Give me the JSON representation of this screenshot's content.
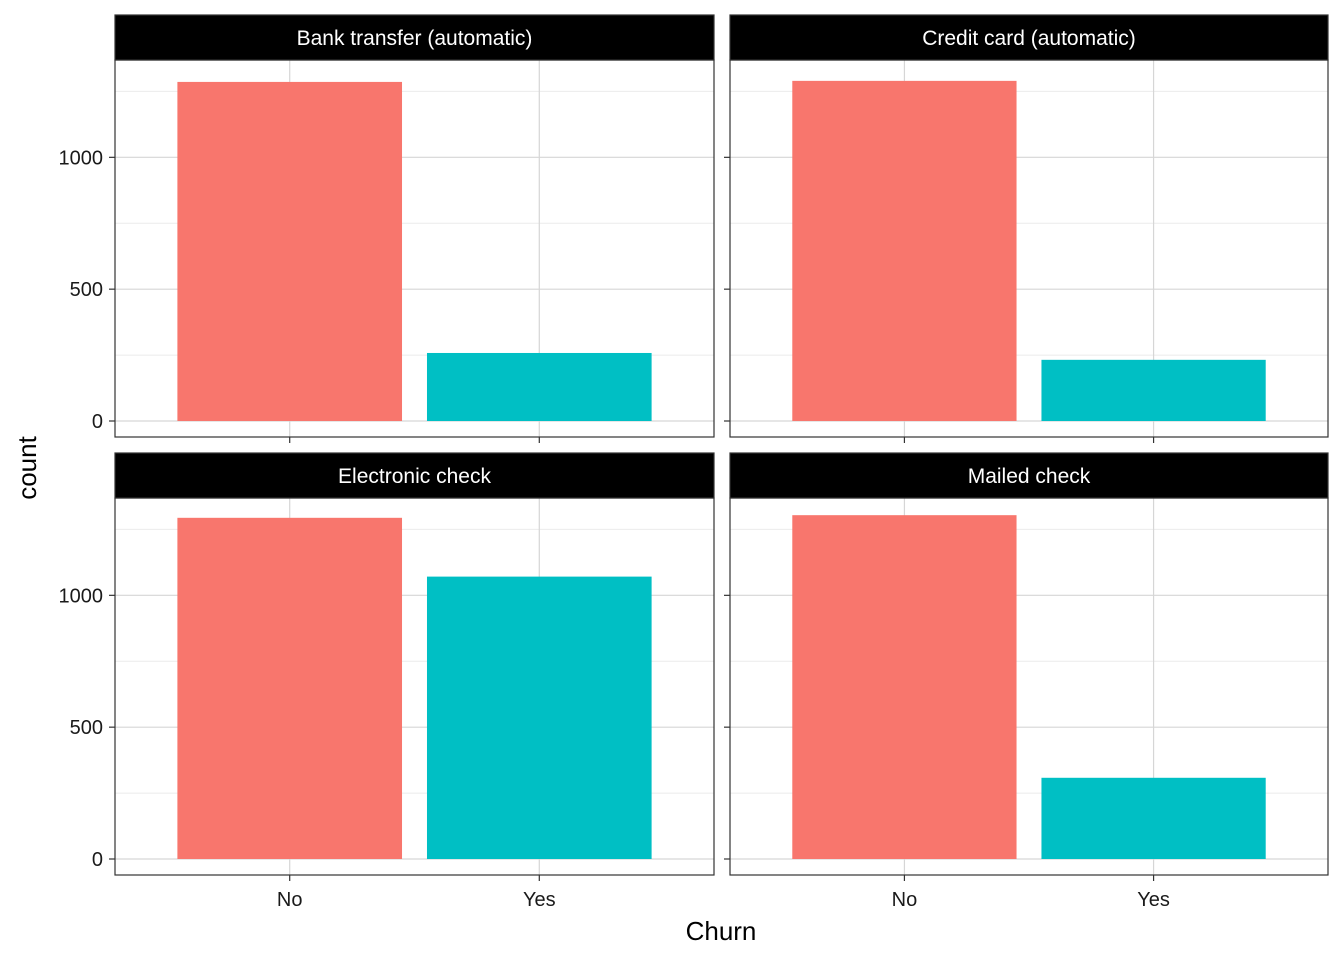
{
  "chart_data": {
    "type": "bar",
    "facet_layout": "2x2",
    "xlabel": "Churn",
    "ylabel": "count",
    "categories": [
      "No",
      "Yes"
    ],
    "ylim": [
      0,
      1370
    ],
    "y_ticks": [
      0,
      500,
      1000
    ],
    "y_tick_labels": [
      "0",
      "500",
      "1000"
    ],
    "grid": true,
    "legend": "none",
    "colors": {
      "No": "#F8766D",
      "Yes": "#00BFC4"
    },
    "panels": [
      {
        "title": "Bank transfer (automatic)",
        "values": [
          1286,
          258
        ]
      },
      {
        "title": "Credit card (automatic)",
        "values": [
          1290,
          232
        ]
      },
      {
        "title": "Electronic check",
        "values": [
          1294,
          1071
        ]
      },
      {
        "title": "Mailed check",
        "values": [
          1304,
          308
        ]
      }
    ]
  }
}
